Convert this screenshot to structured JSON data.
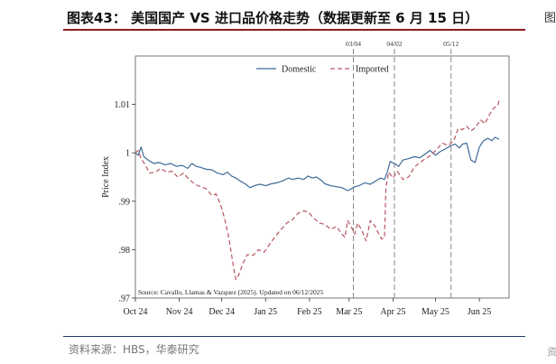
{
  "figure": {
    "title": "图表43： 美国国产 VS 进口品价格走势（数据更新至 6 月 15 日）",
    "source": "资料来源：HBS，华泰研究",
    "edge_char_top": "图",
    "edge_char_bottom": "资"
  },
  "colors": {
    "domestic": "#3f6b99",
    "imported": "#b85560",
    "accent_rule": "#8b1d22",
    "bottom_rule": "#1c3d6e",
    "event_line": "#888888"
  },
  "chart_data": {
    "type": "line",
    "title": "",
    "xlabel": "",
    "ylabel": "Price Index",
    "xlim": [
      "2024-10-01",
      "2025-06-22"
    ],
    "ylim": [
      0.97,
      1.02
    ],
    "x_ticks": [
      "2024-10-01",
      "2024-11-01",
      "2024-12-01",
      "2025-01-01",
      "2025-02-01",
      "2025-03-01",
      "2025-04-01",
      "2025-05-01",
      "2025-06-01"
    ],
    "x_tick_labels": [
      "Oct 24",
      "Nov 24",
      "Dec 24",
      "Jan 25",
      "Feb 25",
      "Mar 25",
      "Apr 25",
      "May 25",
      "Jun 25"
    ],
    "y_ticks": [
      0.97,
      0.98,
      0.99,
      1.0,
      1.01
    ],
    "y_tick_labels": [
      ".97",
      ".98",
      ".99",
      "1",
      "1.01"
    ],
    "grid": false,
    "legend_position": "top-center",
    "event_lines": [
      {
        "label": "03/04",
        "date": "2025-03-04"
      },
      {
        "label": "04/02",
        "date": "2025-04-02"
      },
      {
        "label": "05/12",
        "date": "2025-05-12"
      }
    ],
    "note": "Source: Cavallo, Llamas & Vazquez (2025). Updated on 06/12/2025",
    "series": [
      {
        "name": "Domestic",
        "style": "solid",
        "points": [
          [
            "2024-10-01",
            1.0
          ],
          [
            "2024-10-03",
            0.9995
          ],
          [
            "2024-10-05",
            1.0012
          ],
          [
            "2024-10-07",
            0.9992
          ],
          [
            "2024-10-10",
            0.9985
          ],
          [
            "2024-10-14",
            0.9978
          ],
          [
            "2024-10-18",
            0.998
          ],
          [
            "2024-10-22",
            0.9975
          ],
          [
            "2024-10-26",
            0.9978
          ],
          [
            "2024-10-30",
            0.9972
          ],
          [
            "2024-11-03",
            0.9974
          ],
          [
            "2024-11-07",
            0.9968
          ],
          [
            "2024-11-10",
            0.9978
          ],
          [
            "2024-11-13",
            0.9972
          ],
          [
            "2024-11-16",
            0.997
          ],
          [
            "2024-11-20",
            0.9966
          ],
          [
            "2024-11-24",
            0.9965
          ],
          [
            "2024-11-28",
            0.9958
          ],
          [
            "2024-12-02",
            0.9955
          ],
          [
            "2024-12-05",
            0.996
          ],
          [
            "2024-12-08",
            0.9952
          ],
          [
            "2024-12-11",
            0.9948
          ],
          [
            "2024-12-14",
            0.9942
          ],
          [
            "2024-12-18",
            0.9935
          ],
          [
            "2024-12-21",
            0.9928
          ],
          [
            "2024-12-24",
            0.9932
          ],
          [
            "2024-12-28",
            0.9935
          ],
          [
            "2025-01-01",
            0.9932
          ],
          [
            "2025-01-05",
            0.9936
          ],
          [
            "2025-01-09",
            0.9938
          ],
          [
            "2025-01-13",
            0.9942
          ],
          [
            "2025-01-17",
            0.9948
          ],
          [
            "2025-01-20",
            0.9945
          ],
          [
            "2025-01-24",
            0.9948
          ],
          [
            "2025-01-28",
            0.9945
          ],
          [
            "2025-01-31",
            0.9952
          ],
          [
            "2025-02-03",
            0.9948
          ],
          [
            "2025-02-06",
            0.995
          ],
          [
            "2025-02-09",
            0.9944
          ],
          [
            "2025-02-12",
            0.9936
          ],
          [
            "2025-02-16",
            0.9932
          ],
          [
            "2025-02-20",
            0.993
          ],
          [
            "2025-02-24",
            0.9928
          ],
          [
            "2025-02-28",
            0.9922
          ],
          [
            "2025-03-02",
            0.9925
          ],
          [
            "2025-03-05",
            0.993
          ],
          [
            "2025-03-08",
            0.9932
          ],
          [
            "2025-03-12",
            0.9938
          ],
          [
            "2025-03-16",
            0.9935
          ],
          [
            "2025-03-20",
            0.9942
          ],
          [
            "2025-03-23",
            0.9948
          ],
          [
            "2025-03-26",
            0.9945
          ],
          [
            "2025-03-28",
            0.996
          ],
          [
            "2025-03-30",
            0.9982
          ],
          [
            "2025-04-02",
            0.9978
          ],
          [
            "2025-04-05",
            0.9972
          ],
          [
            "2025-04-08",
            0.9985
          ],
          [
            "2025-04-12",
            0.9988
          ],
          [
            "2025-04-16",
            0.9992
          ],
          [
            "2025-04-20",
            0.999
          ],
          [
            "2025-04-24",
            0.9998
          ],
          [
            "2025-04-27",
            1.0005
          ],
          [
            "2025-05-01",
            0.9995
          ],
          [
            "2025-05-04",
            1.0002
          ],
          [
            "2025-05-08",
            1.0008
          ],
          [
            "2025-05-12",
            1.0015
          ],
          [
            "2025-05-15",
            1.0018
          ],
          [
            "2025-05-18",
            1.001
          ],
          [
            "2025-05-20",
            1.0018
          ],
          [
            "2025-05-23",
            1.002
          ],
          [
            "2025-05-26",
            0.9985
          ],
          [
            "2025-05-29",
            0.998
          ],
          [
            "2025-06-01",
            1.0012
          ],
          [
            "2025-06-04",
            1.0025
          ],
          [
            "2025-06-07",
            1.003
          ],
          [
            "2025-06-10",
            1.0025
          ],
          [
            "2025-06-12",
            1.0032
          ],
          [
            "2025-06-15",
            1.0028
          ]
        ]
      },
      {
        "name": "Imported",
        "style": "dashed",
        "points": [
          [
            "2024-10-01",
            1.0
          ],
          [
            "2024-10-03",
            1.0005
          ],
          [
            "2024-10-05",
            0.9988
          ],
          [
            "2024-10-08",
            0.9975
          ],
          [
            "2024-10-11",
            0.9958
          ],
          [
            "2024-10-15",
            0.996
          ],
          [
            "2024-10-19",
            0.9968
          ],
          [
            "2024-10-23",
            0.996
          ],
          [
            "2024-10-27",
            0.9962
          ],
          [
            "2024-10-31",
            0.995
          ],
          [
            "2024-11-04",
            0.9958
          ],
          [
            "2024-11-08",
            0.9945
          ],
          [
            "2024-11-12",
            0.9935
          ],
          [
            "2024-11-16",
            0.993
          ],
          [
            "2024-11-20",
            0.9926
          ],
          [
            "2024-11-24",
            0.9912
          ],
          [
            "2024-11-27",
            0.9915
          ],
          [
            "2024-11-30",
            0.9895
          ],
          [
            "2024-12-03",
            0.9865
          ],
          [
            "2024-12-06",
            0.9825
          ],
          [
            "2024-12-09",
            0.977
          ],
          [
            "2024-12-11",
            0.9738
          ],
          [
            "2024-12-13",
            0.9748
          ],
          [
            "2024-12-16",
            0.9772
          ],
          [
            "2024-12-19",
            0.979
          ],
          [
            "2024-12-23",
            0.9788
          ],
          [
            "2024-12-27",
            0.98
          ],
          [
            "2024-12-31",
            0.9795
          ],
          [
            "2025-01-04",
            0.9812
          ],
          [
            "2025-01-08",
            0.9828
          ],
          [
            "2025-01-12",
            0.9842
          ],
          [
            "2025-01-16",
            0.9855
          ],
          [
            "2025-01-20",
            0.9862
          ],
          [
            "2025-01-24",
            0.9875
          ],
          [
            "2025-01-28",
            0.988
          ],
          [
            "2025-01-31",
            0.9878
          ],
          [
            "2025-02-04",
            0.9865
          ],
          [
            "2025-02-08",
            0.9855
          ],
          [
            "2025-02-12",
            0.9852
          ],
          [
            "2025-02-16",
            0.9842
          ],
          [
            "2025-02-20",
            0.9848
          ],
          [
            "2025-02-23",
            0.9836
          ],
          [
            "2025-02-26",
            0.9825
          ],
          [
            "2025-02-28",
            0.986
          ],
          [
            "2025-03-02",
            0.985
          ],
          [
            "2025-03-05",
            0.9832
          ],
          [
            "2025-03-07",
            0.9855
          ],
          [
            "2025-03-10",
            0.984
          ],
          [
            "2025-03-13",
            0.9818
          ],
          [
            "2025-03-16",
            0.986
          ],
          [
            "2025-03-19",
            0.985
          ],
          [
            "2025-03-22",
            0.9832
          ],
          [
            "2025-03-24",
            0.9822
          ],
          [
            "2025-03-26",
            0.9825
          ],
          [
            "2025-03-27",
            0.993
          ],
          [
            "2025-03-29",
            0.996
          ],
          [
            "2025-04-01",
            0.9948
          ],
          [
            "2025-04-04",
            0.9962
          ],
          [
            "2025-04-08",
            0.9945
          ],
          [
            "2025-04-12",
            0.995
          ],
          [
            "2025-04-16",
            0.997
          ],
          [
            "2025-04-20",
            0.998
          ],
          [
            "2025-04-24",
            0.9988
          ],
          [
            "2025-04-28",
            0.9995
          ],
          [
            "2025-05-02",
            1.0008
          ],
          [
            "2025-05-06",
            1.002
          ],
          [
            "2025-05-10",
            1.0015
          ],
          [
            "2025-05-14",
            1.0025
          ],
          [
            "2025-05-17",
            1.005
          ],
          [
            "2025-05-20",
            1.0048
          ],
          [
            "2025-05-23",
            1.0055
          ],
          [
            "2025-05-26",
            1.0045
          ],
          [
            "2025-05-29",
            1.0052
          ],
          [
            "2025-06-02",
            1.0068
          ],
          [
            "2025-06-05",
            1.006
          ],
          [
            "2025-06-08",
            1.0078
          ],
          [
            "2025-06-11",
            1.0092
          ],
          [
            "2025-06-14",
            1.0098
          ],
          [
            "2025-06-15",
            1.0108
          ]
        ]
      }
    ]
  }
}
